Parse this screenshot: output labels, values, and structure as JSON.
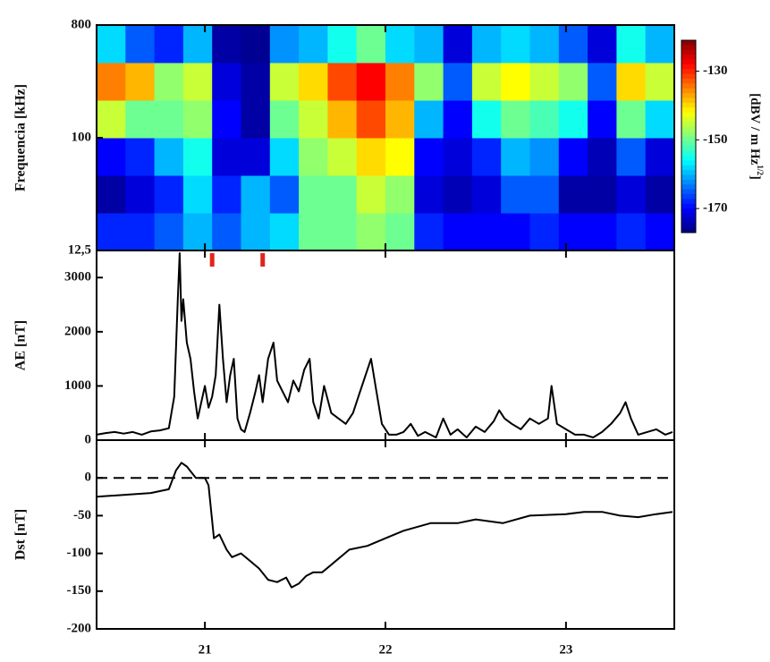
{
  "chart_data": [
    {
      "type": "heatmap",
      "ylabel": "Frequencia [kHz]",
      "ylog": true,
      "xlim": [
        20.4,
        23.6
      ],
      "xticks": [
        21,
        22,
        23
      ],
      "show_xtick_labels": false,
      "ylim": [
        12.5,
        800
      ],
      "yticks": [
        {
          "value": 12.5,
          "label": "12,5"
        },
        100,
        800
      ],
      "x_bins": [
        20.4,
        20.56,
        20.72,
        20.88,
        21.04,
        21.2,
        21.36,
        21.52,
        21.68,
        21.84,
        22.0,
        22.16,
        22.32,
        22.48,
        22.64,
        22.8,
        22.96,
        23.12,
        23.28,
        23.44,
        23.6
      ],
      "y_bins": [
        12.5,
        25,
        50,
        100,
        200,
        400,
        800
      ],
      "z": [
        [
          -168,
          -168,
          -165,
          -160,
          -165,
          -160,
          -158,
          -150,
          -150,
          -148,
          -150,
          -168,
          -170,
          -170,
          -170,
          -168,
          -170,
          -170,
          -168,
          -170
        ],
        [
          -175,
          -172,
          -168,
          -158,
          -168,
          -160,
          -165,
          -150,
          -150,
          -145,
          -148,
          -172,
          -174,
          -172,
          -165,
          -165,
          -175,
          -175,
          -172,
          -175
        ],
        [
          -170,
          -168,
          -160,
          -155,
          -172,
          -172,
          -158,
          -148,
          -145,
          -140,
          -142,
          -170,
          -172,
          -168,
          -160,
          -162,
          -170,
          -174,
          -165,
          -172
        ],
        [
          -145,
          -150,
          -150,
          -148,
          -170,
          -175,
          -150,
          -145,
          -138,
          -132,
          -138,
          -160,
          -170,
          -155,
          -150,
          -152,
          -155,
          -170,
          -150,
          -158
        ],
        [
          -135,
          -138,
          -148,
          -145,
          -172,
          -175,
          -145,
          -140,
          -132,
          -128,
          -135,
          -148,
          -165,
          -145,
          -142,
          -145,
          -148,
          -165,
          -140,
          -145
        ],
        [
          -158,
          -165,
          -168,
          -160,
          -175,
          -176,
          -162,
          -160,
          -155,
          -150,
          -158,
          -160,
          -172,
          -160,
          -158,
          -160,
          -165,
          -172,
          -155,
          -160
        ]
      ],
      "colorscale": "jet",
      "zlim": [
        -177,
        -121
      ],
      "zticks": [
        -130,
        -150,
        -170
      ],
      "colorbar_label": {
        "text": "[dBV / m Hz",
        "sup": "1/2",
        "end": "]"
      }
    },
    {
      "type": "line",
      "ylabel": "AE [nT]",
      "xlim": [
        20.4,
        23.6
      ],
      "xticks": [
        21,
        22,
        23
      ],
      "show_xtick_labels": false,
      "ylim": [
        0,
        3500
      ],
      "yticks": [
        0,
        1000,
        2000,
        3000
      ],
      "x": [
        20.4,
        20.45,
        20.5,
        20.55,
        20.6,
        20.65,
        20.7,
        20.75,
        20.8,
        20.83,
        20.85,
        20.86,
        20.87,
        20.88,
        20.9,
        20.92,
        20.94,
        20.96,
        20.98,
        21.0,
        21.02,
        21.04,
        21.06,
        21.08,
        21.1,
        21.12,
        21.14,
        21.16,
        21.18,
        21.2,
        21.22,
        21.25,
        21.28,
        21.3,
        21.32,
        21.35,
        21.38,
        21.4,
        21.43,
        21.46,
        21.49,
        21.52,
        21.55,
        21.58,
        21.6,
        21.63,
        21.66,
        21.7,
        21.74,
        21.78,
        21.82,
        21.86,
        21.9,
        21.92,
        21.95,
        21.98,
        22.02,
        22.06,
        22.1,
        22.14,
        22.18,
        22.22,
        22.28,
        22.32,
        22.36,
        22.4,
        22.45,
        22.5,
        22.55,
        22.6,
        22.63,
        22.66,
        22.7,
        22.75,
        22.8,
        22.85,
        22.9,
        22.92,
        22.95,
        23.0,
        23.05,
        23.1,
        23.15,
        23.2,
        23.25,
        23.3,
        23.33,
        23.36,
        23.4,
        23.45,
        23.5,
        23.55,
        23.59
      ],
      "series": [
        {
          "color": "#000000",
          "values": [
            100,
            130,
            150,
            120,
            150,
            100,
            160,
            180,
            220,
            800,
            2600,
            3450,
            2200,
            2600,
            1800,
            1500,
            900,
            400,
            700,
            1000,
            600,
            800,
            1200,
            2500,
            1500,
            700,
            1200,
            1500,
            400,
            200,
            150,
            500,
            900,
            1200,
            700,
            1500,
            1800,
            1100,
            900,
            700,
            1100,
            900,
            1300,
            1500,
            700,
            400,
            1000,
            500,
            400,
            300,
            500,
            900,
            1300,
            1500,
            900,
            300,
            100,
            100,
            150,
            300,
            80,
            150,
            50,
            400,
            100,
            200,
            50,
            250,
            150,
            350,
            550,
            400,
            300,
            200,
            400,
            300,
            400,
            1000,
            300,
            200,
            100,
            100,
            50,
            150,
            300,
            500,
            700,
            400,
            100,
            150,
            200,
            100,
            150
          ]
        }
      ],
      "markers": {
        "x": [
          21.04,
          21.32
        ],
        "color": "#e0261b"
      }
    },
    {
      "type": "line",
      "ylabel": "Dst [nT]",
      "xlim": [
        20.4,
        23.6
      ],
      "xticks": [
        21,
        22,
        23
      ],
      "show_xtick_labels": true,
      "ylim": [
        -200,
        50
      ],
      "yticks": [
        0,
        -50,
        -100,
        -150,
        -200
      ],
      "hline": 0,
      "x": [
        20.4,
        20.7,
        20.8,
        20.84,
        20.87,
        20.9,
        20.95,
        21.0,
        21.02,
        21.05,
        21.08,
        21.12,
        21.15,
        21.2,
        21.25,
        21.3,
        21.35,
        21.4,
        21.45,
        21.48,
        21.52,
        21.56,
        21.6,
        21.65,
        21.7,
        21.8,
        21.9,
        22.0,
        22.1,
        22.25,
        22.4,
        22.5,
        22.65,
        22.8,
        23.0,
        23.1,
        23.2,
        23.3,
        23.4,
        23.5,
        23.59
      ],
      "series": [
        {
          "color": "#000000",
          "values": [
            -25,
            -20,
            -15,
            10,
            20,
            15,
            0,
            0,
            -10,
            -80,
            -75,
            -95,
            -105,
            -100,
            -110,
            -120,
            -135,
            -138,
            -132,
            -145,
            -140,
            -130,
            -125,
            -125,
            -115,
            -95,
            -90,
            -80,
            -70,
            -60,
            -60,
            -55,
            -60,
            -50,
            -48,
            -45,
            -45,
            -50,
            -52,
            -48,
            -45
          ]
        }
      ]
    }
  ]
}
